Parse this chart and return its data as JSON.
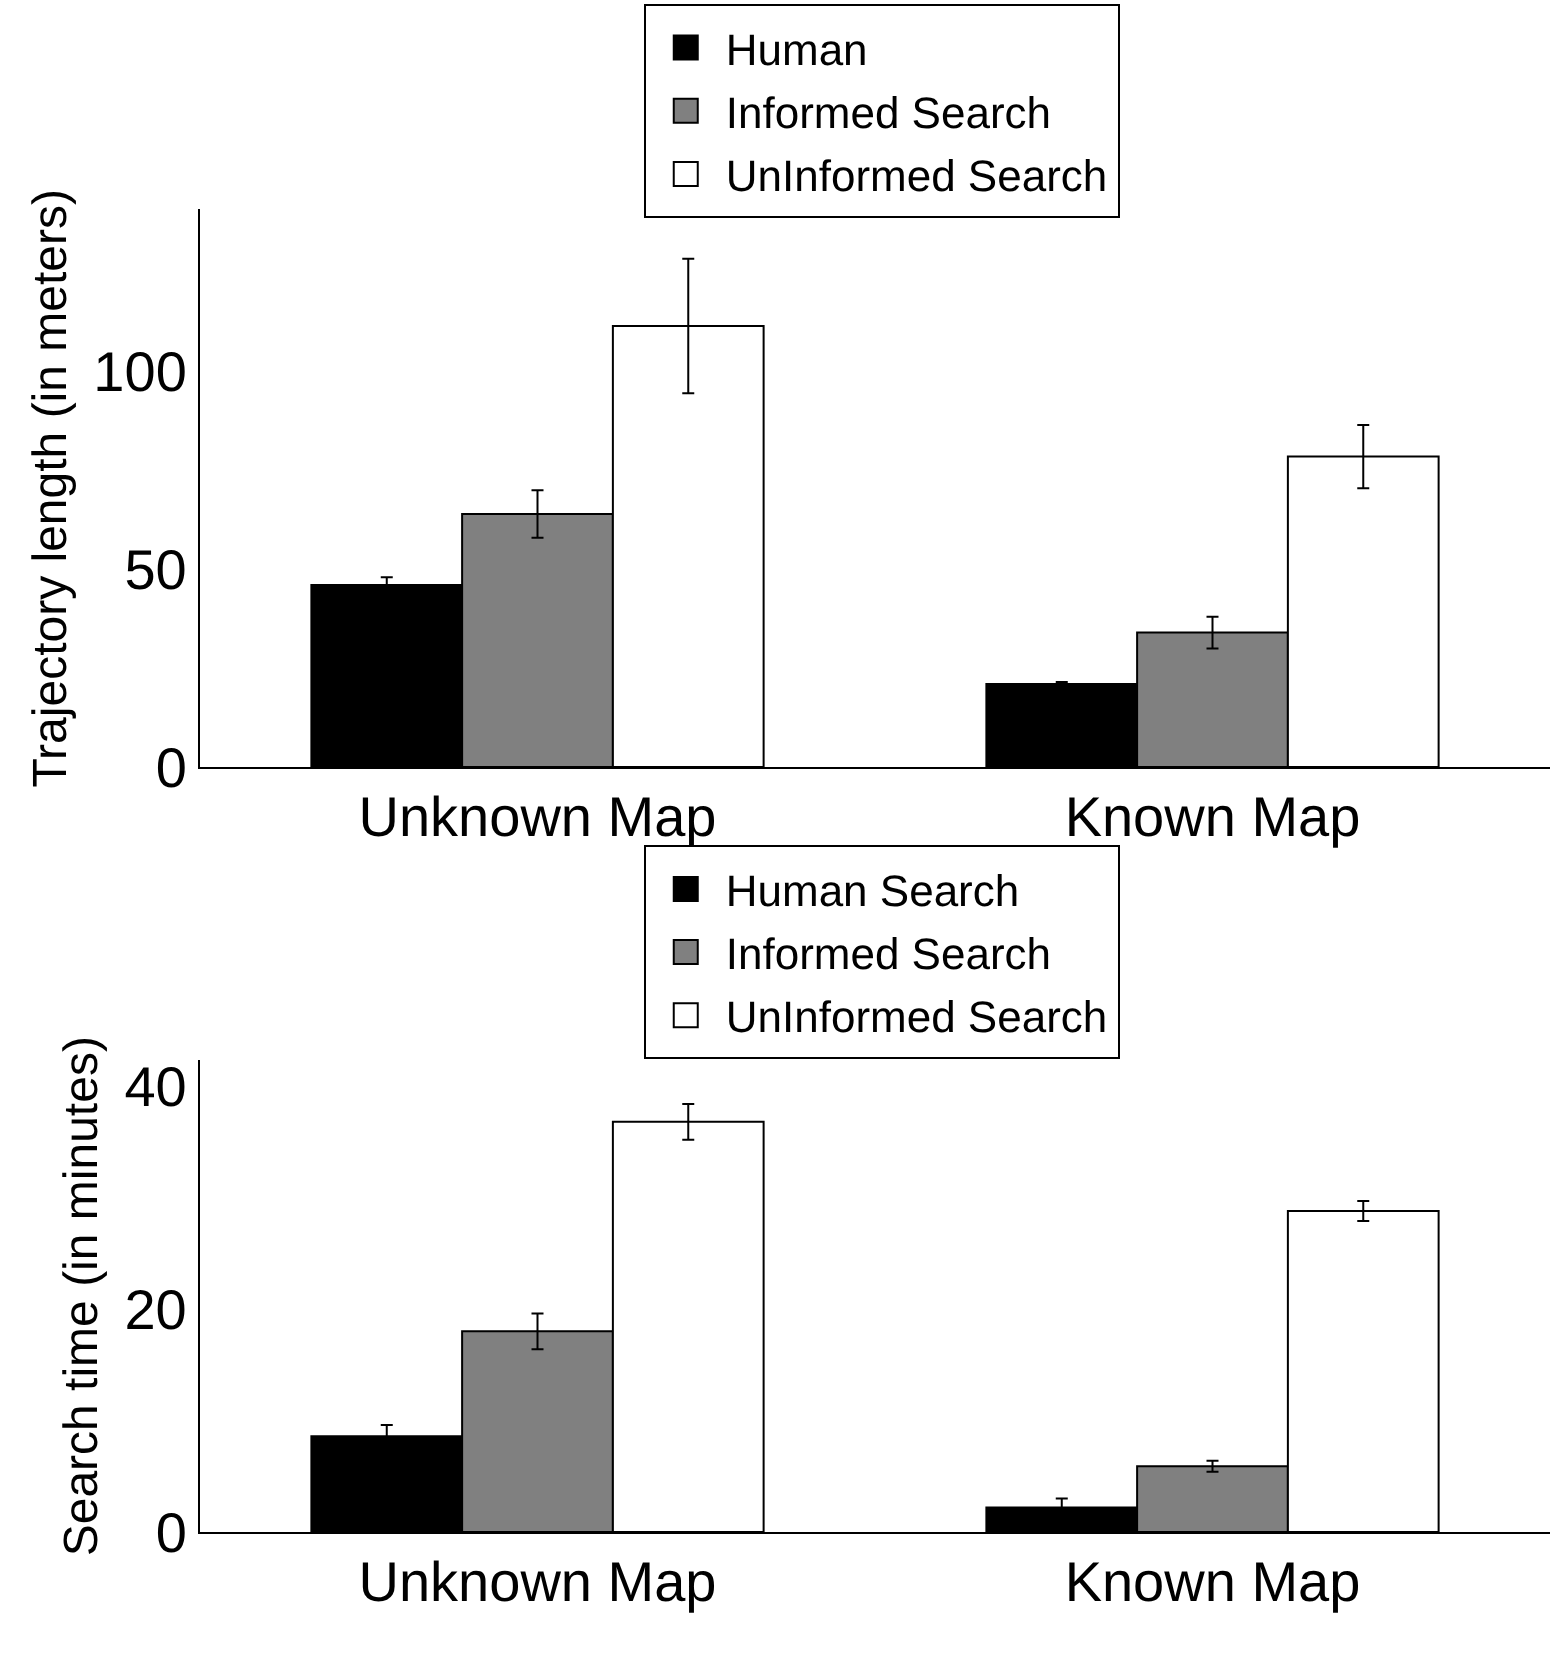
{
  "chart_data": [
    {
      "type": "bar",
      "ylabel": "Trajectory length (in meters)",
      "categories": [
        "Unknown Map",
        "Known Map"
      ],
      "ylim": [
        0,
        141
      ],
      "yticks": [
        0,
        50,
        100
      ],
      "legend": "top",
      "series": [
        {
          "name": "Human",
          "color": "#000000",
          "values": [
            46,
            21
          ],
          "errors": [
            2,
            0.5
          ]
        },
        {
          "name": "Informed Search",
          "color": "#808080",
          "values": [
            64,
            34
          ],
          "errors": [
            6,
            4
          ]
        },
        {
          "name": "UnInformed Search",
          "color": "#ffffff",
          "values": [
            111.5,
            78.5
          ],
          "errors": [
            17,
            8
          ]
        }
      ]
    },
    {
      "type": "bar",
      "ylabel": "Search time (in minutes)",
      "categories": [
        "Unknown Map",
        "Known Map"
      ],
      "ylim": [
        0,
        42.3
      ],
      "yticks": [
        0,
        20,
        40
      ],
      "legend": "top",
      "series": [
        {
          "name": "Human Search",
          "color": "#000000",
          "values": [
            8.6,
            2.2
          ],
          "errors": [
            1,
            0.8
          ]
        },
        {
          "name": "Informed Search",
          "color": "#808080",
          "values": [
            18,
            5.9
          ],
          "errors": [
            1.6,
            0.5
          ]
        },
        {
          "name": "UnInformed Search",
          "color": "#ffffff",
          "values": [
            36.8,
            28.8
          ],
          "errors": [
            1.6,
            0.9
          ]
        }
      ]
    }
  ]
}
